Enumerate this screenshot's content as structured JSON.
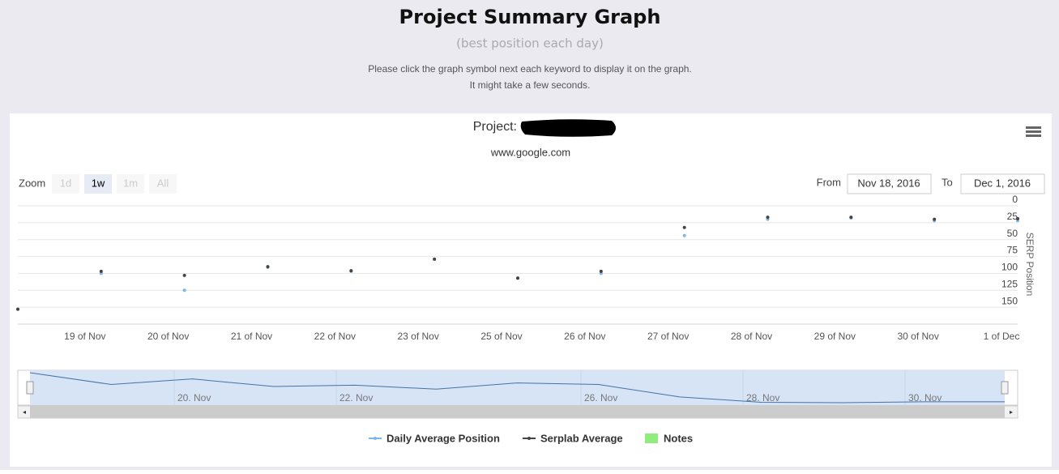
{
  "header": {
    "title": "Project Summary Graph",
    "subtitle": "(best position each day)",
    "instructions": [
      "Please click the graph symbol next each keyword to display it on the graph.",
      "It might take a few seconds."
    ]
  },
  "controls": {
    "zoom_label": "Zoom",
    "zoom_buttons": [
      "1d",
      "1w",
      "1m",
      "All"
    ],
    "selected_zoom": 1,
    "from_label": "From",
    "from_value": "Nov 18, 2016",
    "to_label": "To",
    "to_value": "Dec 1, 2016"
  },
  "chart_data": {
    "type": "line",
    "title": "Project:",
    "subtitle": "www.google.com",
    "y_axis_title": "SERP Position",
    "categories": [
      null,
      "19 of Nov",
      "20 of Nov",
      "21 of Nov",
      "22 of Nov",
      "23 of Nov",
      "25 of Nov",
      "26 of Nov",
      "27 of Nov",
      "28 of Nov",
      "29 of Nov",
      "30 of Nov",
      "1 of Dec"
    ],
    "series": [
      {
        "name": "Daily Average Position",
        "color": "#7cb5ec",
        "values": [
          153,
          100,
          125,
          91,
          97,
          79,
          107,
          100,
          44,
          20,
          18,
          22,
          22
        ]
      },
      {
        "name": "Serplab Average",
        "color": "#434348",
        "values": [
          153,
          97,
          103,
          90,
          96,
          79,
          107,
          97,
          32,
          17,
          17,
          20,
          19
        ]
      }
    ],
    "ylim": [
      0,
      175
    ],
    "yticks": [
      0,
      25,
      50,
      75,
      100,
      125,
      150
    ],
    "reversed": true,
    "grid": true,
    "notes_legend": {
      "name": "Notes",
      "color": "#90ed7d"
    },
    "navigator_labels": [
      "20. Nov",
      "22. Nov",
      "26. Nov",
      "28. Nov",
      "30. Nov"
    ]
  }
}
